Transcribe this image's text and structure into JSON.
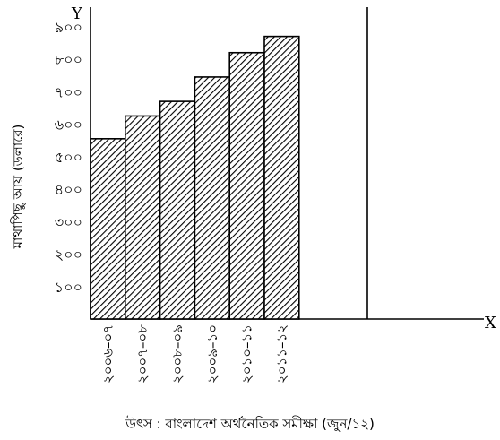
{
  "chart_data": {
    "type": "bar",
    "ylabel": "মাথাপিছু আয় (ডলারে)",
    "x_axis_letter": "X",
    "y_axis_letter": "Y",
    "source": "উৎস : বাংলাদেশ অর্থনৈতিক সমীক্ষা (জুন/১২)",
    "categories": [
      "২০০৬–০৭",
      "২০০৭–০৮",
      "২০০৮–০৯",
      "২০০৯–১০",
      "২০১০–১১",
      "২০১১–১২"
    ],
    "values": [
      555,
      625,
      670,
      745,
      820,
      870
    ],
    "yticks": [
      {
        "value": 100,
        "label": "১০০"
      },
      {
        "value": 200,
        "label": "২০০"
      },
      {
        "value": 300,
        "label": "৩০০"
      },
      {
        "value": 400,
        "label": "৪০০"
      },
      {
        "value": 500,
        "label": "৫০০"
      },
      {
        "value": 600,
        "label": "৬০০"
      },
      {
        "value": 700,
        "label": "৭০০"
      },
      {
        "value": 800,
        "label": "৮০০"
      },
      {
        "value": 900,
        "label": "৯০০"
      }
    ],
    "ylim": [
      0,
      960
    ],
    "grid": false,
    "bar_fill": "diagonal-hatch",
    "colors": {
      "stroke": "#000000",
      "background": "#ffffff"
    }
  }
}
